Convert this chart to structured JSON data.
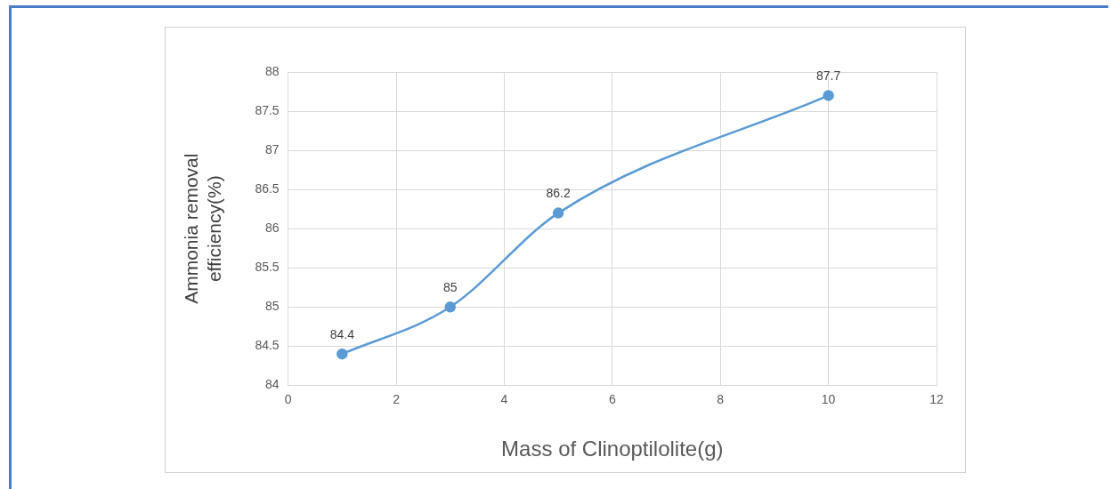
{
  "chart_data": {
    "type": "line",
    "xlabel": "Mass of Clinoptilolite(g)",
    "ylabel": "Ammonia removal efficiency(%)",
    "x": [
      1,
      3,
      5,
      10
    ],
    "series": [
      {
        "color": "#5b9bd5",
        "values": [
          84.4,
          85,
          86.2,
          87.7
        ]
      }
    ],
    "xlim": [
      0,
      12
    ],
    "xticks": [
      0,
      2,
      4,
      6,
      8,
      10,
      12
    ],
    "ylim": [
      84,
      88
    ],
    "yticks": [
      84,
      84.5,
      85,
      85.5,
      86,
      86.5,
      87,
      87.5,
      88
    ],
    "grid": true,
    "marker": "circle",
    "line_style": "solid",
    "data_labels": true,
    "legend": false
  }
}
